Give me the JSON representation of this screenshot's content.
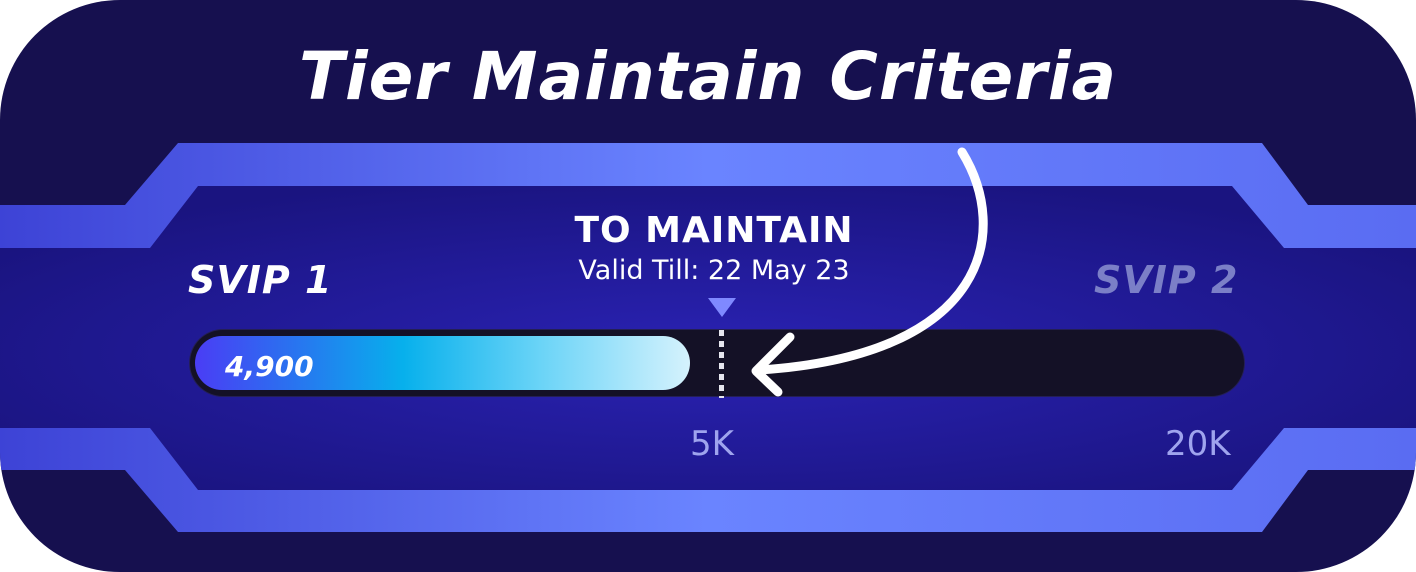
{
  "title": "Tier Maintain Criteria",
  "current_tier": "SVIP 1",
  "next_tier": "SVIP 2",
  "maintain": {
    "heading": "TO MAINTAIN",
    "valid_till": "Valid Till: 22 May 23"
  },
  "progress": {
    "current_label": "4,900",
    "current_value": 4900,
    "fill_fraction": 0.47
  },
  "ticks": {
    "maintain": "5K",
    "max": "20K"
  },
  "colors": {
    "background": "#16104f",
    "band": "#5b6cf0",
    "fill_start": "#4a3df5",
    "fill_end": "#d5f2fd",
    "next_tier_text": "#7b7fc7",
    "tick_text": "#9fa4ee"
  },
  "icons": {
    "marker": "down-triangle-icon",
    "arrow": "curved-arrow-icon"
  }
}
